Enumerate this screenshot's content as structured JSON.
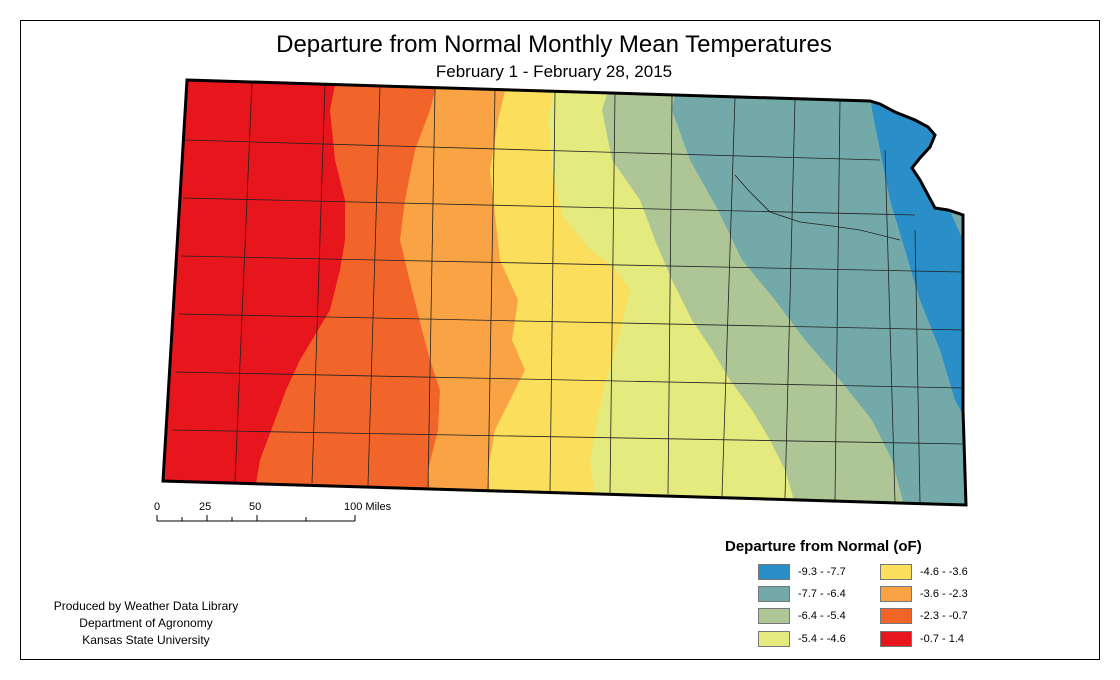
{
  "title": "Departure from Normal Monthly Mean Temperatures",
  "subtitle": "February 1 - February 28, 2015",
  "scale_bar": {
    "labels": [
      "0",
      "25",
      "50",
      "100 Miles"
    ]
  },
  "legend": {
    "title": "Departure from Normal (oF)",
    "items": [
      {
        "label": "-9.3 - -7.7",
        "color": "#2a8ec9"
      },
      {
        "label": "-7.7 - -6.4",
        "color": "#74a9aa"
      },
      {
        "label": "-6.4 - -5.4",
        "color": "#aec595"
      },
      {
        "label": "-5.4 - -4.6",
        "color": "#e5ea7e"
      },
      {
        "label": "-4.6 - -3.6",
        "color": "#fbde5b"
      },
      {
        "label": "-3.6 - -2.3",
        "color": "#f9a344"
      },
      {
        "label": "-2.3 - -0.7",
        "color": "#f2652a"
      },
      {
        "label": "-0.7 - 1.4",
        "color": "#e6161c"
      }
    ]
  },
  "credit": {
    "lines": [
      "Produced by Weather Data Library",
      "Department of Agronomy",
      "Kansas State University"
    ]
  }
}
